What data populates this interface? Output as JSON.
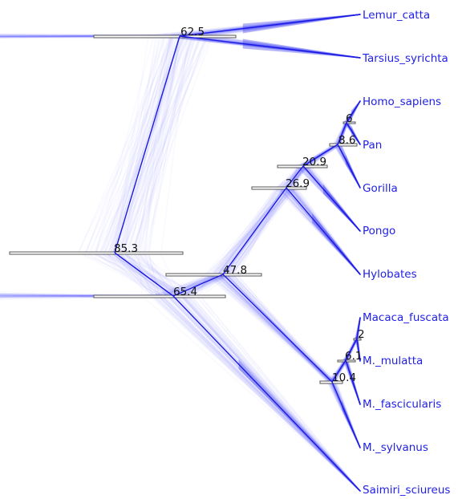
{
  "taxa": {
    "lemur": "Lemur_catta",
    "tarsius": "Tarsius_syrichta",
    "homo": "Homo_sapiens",
    "pan": "Pan",
    "gorilla": "Gorilla",
    "pongo": "Pongo",
    "hylobates": "Hylobates",
    "macaca_fuscata": "Macaca_fuscata",
    "mulatta": "M._mulatta",
    "fascicularis": "M._fascicularis",
    "sylvanus": "M._sylvanus",
    "saimiri": "Saimiri_sciureus"
  },
  "node_ages": {
    "root": "85.3",
    "strepsirrhini_tarsius": "62.5",
    "anthropoidea": "65.4",
    "catarrhini": "47.8",
    "hominoidea": "26.9",
    "homininae_pongo": "20.9",
    "homininae": "8.6",
    "homo_pan": "6",
    "macaca": "10.4",
    "macaca_inner": "6.1",
    "fuscata_mulatta": "2"
  },
  "colors": {
    "taxon_label": "#1f1fe6",
    "branch": "#1a1ae0",
    "cloud": "#4a4af2",
    "age_label": "#111111"
  }
}
